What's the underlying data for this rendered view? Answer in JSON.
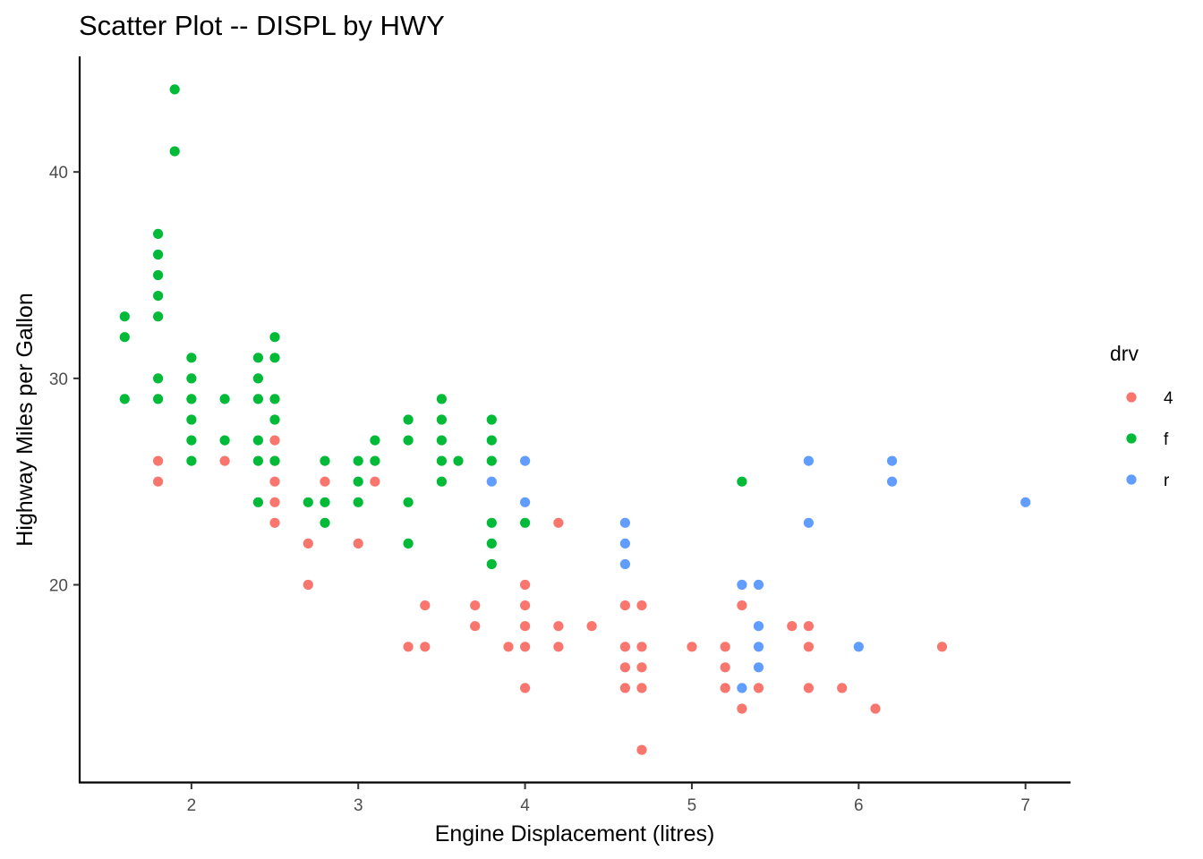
{
  "chart_data": {
    "type": "scatter",
    "title": "Scatter Plot -- DISPL by HWY",
    "xlabel": "Engine Displacement (litres)",
    "ylabel": "Highway Miles per Gallon",
    "xlim": [
      1.33,
      7.27
    ],
    "ylim": [
      10.4,
      45.6
    ],
    "xticks": [
      2,
      3,
      4,
      5,
      6,
      7
    ],
    "yticks": [
      20,
      30,
      40
    ],
    "grid": false,
    "legend": {
      "title": "drv",
      "placement": "right"
    },
    "series": [
      {
        "name": "4",
        "color": "#F8766D",
        "points": [
          [
            1.8,
            26
          ],
          [
            1.8,
            25
          ],
          [
            2.2,
            26
          ],
          [
            2.5,
            27
          ],
          [
            2.5,
            26
          ],
          [
            2.5,
            25
          ],
          [
            2.5,
            24
          ],
          [
            2.5,
            23
          ],
          [
            2.7,
            22
          ],
          [
            2.7,
            20
          ],
          [
            2.8,
            25
          ],
          [
            3.0,
            22
          ],
          [
            3.1,
            25
          ],
          [
            3.3,
            17
          ],
          [
            3.4,
            19
          ],
          [
            3.4,
            17
          ],
          [
            3.7,
            19
          ],
          [
            3.7,
            18
          ],
          [
            3.9,
            17
          ],
          [
            4.0,
            20
          ],
          [
            4.0,
            19
          ],
          [
            4.0,
            18
          ],
          [
            4.0,
            17
          ],
          [
            4.0,
            15
          ],
          [
            4.2,
            23
          ],
          [
            4.2,
            18
          ],
          [
            4.2,
            17
          ],
          [
            4.4,
            18
          ],
          [
            4.6,
            19
          ],
          [
            4.6,
            17
          ],
          [
            4.6,
            16
          ],
          [
            4.6,
            15
          ],
          [
            4.7,
            19
          ],
          [
            4.7,
            17
          ],
          [
            4.7,
            16
          ],
          [
            4.7,
            15
          ],
          [
            4.7,
            12
          ],
          [
            5.0,
            17
          ],
          [
            5.2,
            17
          ],
          [
            5.2,
            16
          ],
          [
            5.2,
            15
          ],
          [
            5.3,
            19
          ],
          [
            5.3,
            14
          ],
          [
            5.4,
            15
          ],
          [
            5.6,
            18
          ],
          [
            5.7,
            18
          ],
          [
            5.7,
            17
          ],
          [
            5.7,
            15
          ],
          [
            5.9,
            15
          ],
          [
            6.1,
            14
          ],
          [
            6.5,
            17
          ]
        ]
      },
      {
        "name": "f",
        "color": "#00BA38",
        "points": [
          [
            1.6,
            33
          ],
          [
            1.6,
            32
          ],
          [
            1.6,
            29
          ],
          [
            1.8,
            37
          ],
          [
            1.8,
            36
          ],
          [
            1.8,
            35
          ],
          [
            1.8,
            34
          ],
          [
            1.8,
            33
          ],
          [
            1.8,
            30
          ],
          [
            1.8,
            29
          ],
          [
            1.9,
            44
          ],
          [
            1.9,
            41
          ],
          [
            2.0,
            31
          ],
          [
            2.0,
            30
          ],
          [
            2.0,
            29
          ],
          [
            2.0,
            28
          ],
          [
            2.0,
            27
          ],
          [
            2.0,
            26
          ],
          [
            2.2,
            29
          ],
          [
            2.2,
            27
          ],
          [
            2.4,
            31
          ],
          [
            2.4,
            30
          ],
          [
            2.4,
            29
          ],
          [
            2.4,
            27
          ],
          [
            2.4,
            26
          ],
          [
            2.4,
            24
          ],
          [
            2.5,
            32
          ],
          [
            2.5,
            31
          ],
          [
            2.5,
            29
          ],
          [
            2.5,
            28
          ],
          [
            2.5,
            26
          ],
          [
            2.7,
            24
          ],
          [
            2.8,
            26
          ],
          [
            2.8,
            24
          ],
          [
            2.8,
            23
          ],
          [
            3.0,
            26
          ],
          [
            3.0,
            25
          ],
          [
            3.0,
            24
          ],
          [
            3.1,
            27
          ],
          [
            3.1,
            26
          ],
          [
            3.3,
            28
          ],
          [
            3.3,
            27
          ],
          [
            3.3,
            24
          ],
          [
            3.3,
            22
          ],
          [
            3.5,
            29
          ],
          [
            3.5,
            28
          ],
          [
            3.5,
            27
          ],
          [
            3.5,
            26
          ],
          [
            3.5,
            25
          ],
          [
            3.6,
            26
          ],
          [
            3.8,
            28
          ],
          [
            3.8,
            27
          ],
          [
            3.8,
            26
          ],
          [
            3.8,
            23
          ],
          [
            3.8,
            22
          ],
          [
            3.8,
            21
          ],
          [
            4.0,
            23
          ],
          [
            5.3,
            25
          ]
        ]
      },
      {
        "name": "r",
        "color": "#619CFF",
        "points": [
          [
            3.8,
            25
          ],
          [
            4.0,
            26
          ],
          [
            4.0,
            24
          ],
          [
            4.6,
            23
          ],
          [
            4.6,
            22
          ],
          [
            4.6,
            21
          ],
          [
            5.3,
            20
          ],
          [
            5.3,
            15
          ],
          [
            5.4,
            20
          ],
          [
            5.4,
            18
          ],
          [
            5.4,
            17
          ],
          [
            5.4,
            16
          ],
          [
            5.7,
            26
          ],
          [
            5.7,
            23
          ],
          [
            6.0,
            17
          ],
          [
            6.2,
            26
          ],
          [
            6.2,
            25
          ],
          [
            7.0,
            24
          ]
        ]
      }
    ]
  }
}
